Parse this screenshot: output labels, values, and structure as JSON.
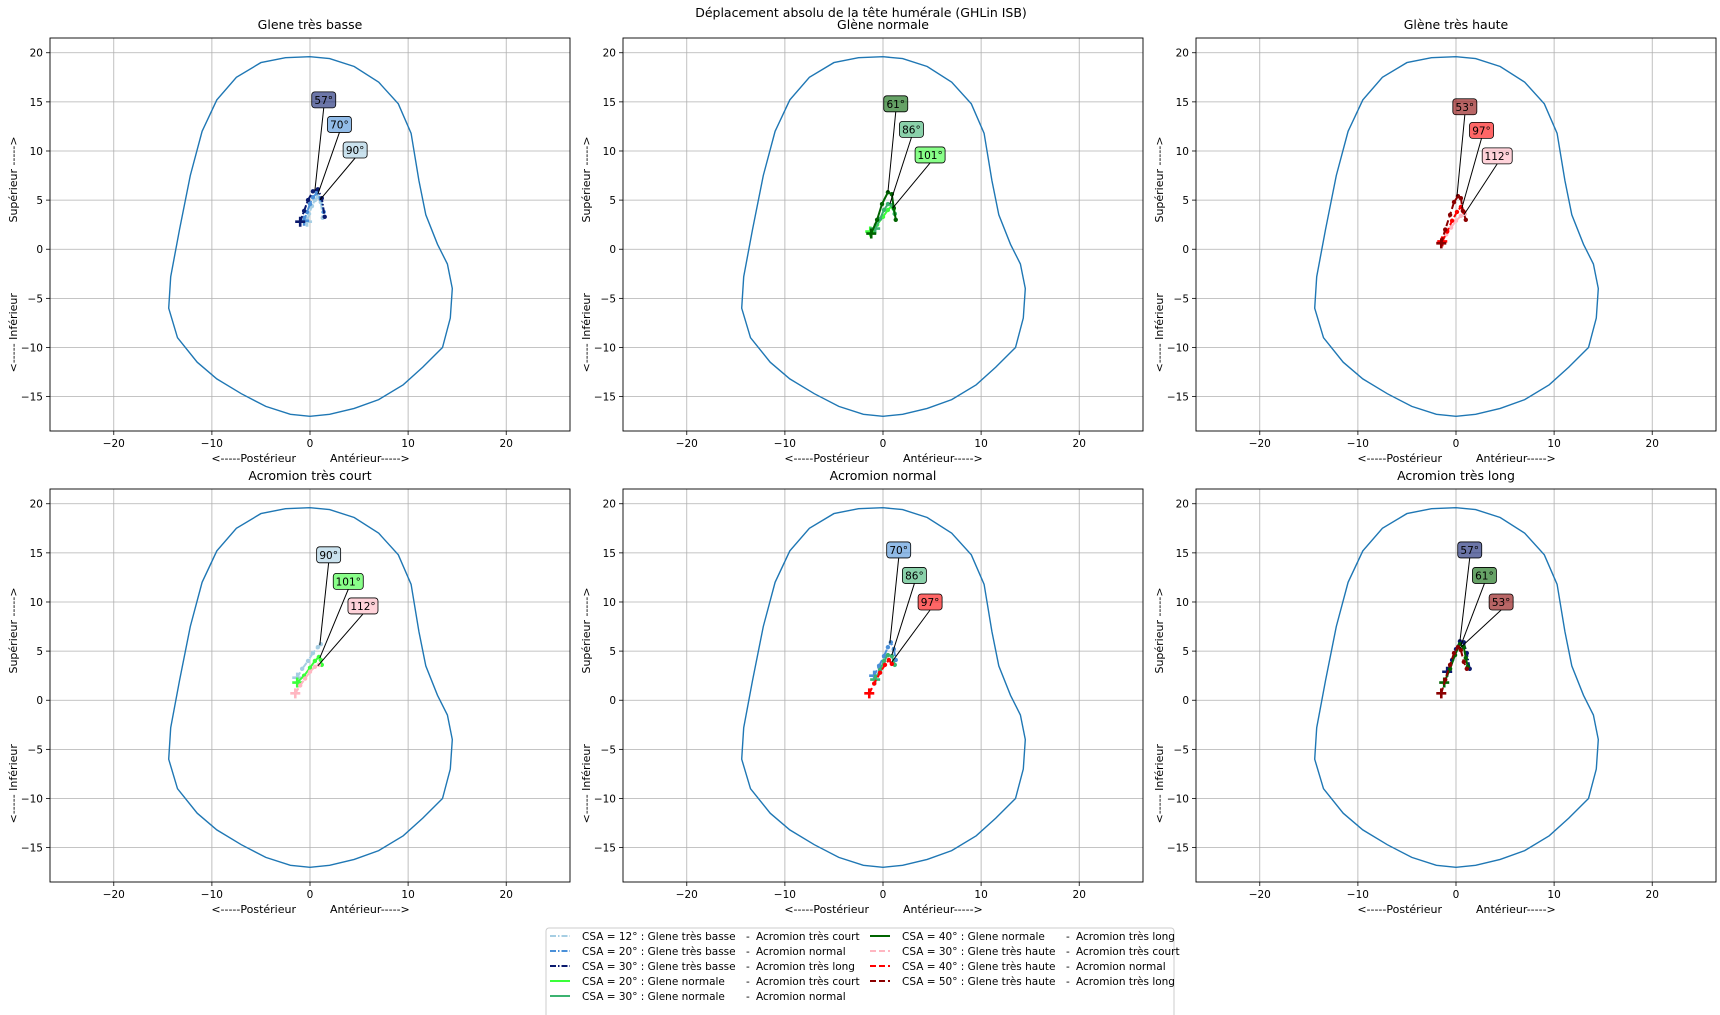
{
  "figure_title": "Déplacement absolu de la tête humérale (GHLin ISB)",
  "chart_data": {
    "type": "line",
    "title": "Déplacement absolu de la tête humérale (GHLin ISB)",
    "xlim": [
      -26.5,
      26.5
    ],
    "ylim": [
      -18.5,
      21.5
    ],
    "xticks": [
      -20,
      -10,
      0,
      10,
      20
    ],
    "yticks": [
      -15,
      -10,
      -5,
      0,
      5,
      10,
      15,
      20
    ],
    "xlabel_left": "<-----Postérieur",
    "xlabel_right": "Antérieur----->",
    "ylabel_bottom": "<----- Inférieur",
    "ylabel_top": "Supérieur ----->",
    "grid": true,
    "legend_placement": "bottom-center",
    "outline_color": "#1f77b4",
    "glenoid_outline": [
      [
        0,
        19.6
      ],
      [
        -2.5,
        19.5
      ],
      [
        -5,
        19
      ],
      [
        -7.5,
        17.5
      ],
      [
        -9.5,
        15.2
      ],
      [
        -11,
        12
      ],
      [
        -12.2,
        7.5
      ],
      [
        -13.3,
        2
      ],
      [
        -14.2,
        -2.8
      ],
      [
        -14.4,
        -6
      ],
      [
        -13.5,
        -9
      ],
      [
        -11.5,
        -11.5
      ],
      [
        -9.5,
        -13.2
      ],
      [
        -7,
        -14.7
      ],
      [
        -4.5,
        -16
      ],
      [
        -2,
        -16.8
      ],
      [
        0,
        -17
      ],
      [
        2,
        -16.8
      ],
      [
        4.5,
        -16.2
      ],
      [
        7,
        -15.3
      ],
      [
        9.5,
        -13.8
      ],
      [
        11.5,
        -12
      ],
      [
        13.5,
        -10
      ],
      [
        14.3,
        -7
      ],
      [
        14.5,
        -4
      ],
      [
        14,
        -1.5
      ],
      [
        13,
        0.5
      ],
      [
        11.8,
        3.5
      ],
      [
        11.1,
        7
      ],
      [
        10.3,
        11.8
      ],
      [
        9,
        14.8
      ],
      [
        7,
        17
      ],
      [
        4.5,
        18.6
      ],
      [
        2,
        19.4
      ],
      [
        0,
        19.6
      ]
    ],
    "legend": [
      {
        "label": "CSA = 12° : Glene très basse",
        "sep": "-",
        "acromion": "Acromion très court",
        "color": "#a6cee3",
        "dash": "dashdot"
      },
      {
        "label": "CSA = 20° : Glene très basse",
        "sep": "-",
        "acromion": "Acromion normal",
        "color": "#4a90d9",
        "dash": "dashdot"
      },
      {
        "label": "CSA = 30° : Glene très basse",
        "sep": "-",
        "acromion": "Acromion très long",
        "color": "#0a1a6e",
        "dash": "dashdot"
      },
      {
        "label": "CSA = 20° : Glene normale",
        "sep": "-",
        "acromion": "Acromion très court",
        "color": "#3aff3a",
        "dash": "solid"
      },
      {
        "label": "CSA = 30° : Glene normale",
        "sep": "-",
        "acromion": "Acromion normal",
        "color": "#3cb371",
        "dash": "solid"
      },
      {
        "label": "CSA = 40° : Glene normale",
        "sep": "-",
        "acromion": "Acromion très long",
        "color": "#006400",
        "dash": "solid"
      },
      {
        "label": "CSA = 30° : Glene très haute",
        "sep": "-",
        "acromion": "Acromion très court",
        "color": "#ffb6c1",
        "dash": "dashed"
      },
      {
        "label": "CSA = 40° : Glene très haute",
        "sep": "-",
        "acromion": "Acromion normal",
        "color": "#ff0000",
        "dash": "dashed"
      },
      {
        "label": "CSA = 50° : Glene très haute",
        "sep": "-",
        "acromion": "Acromion très long",
        "color": "#8b0000",
        "dash": "dashed"
      }
    ],
    "panels": [
      {
        "title": "Glene très basse",
        "series": [
          {
            "ref": 0,
            "points": [
              [
                -0.3,
                2.8
              ],
              [
                -0.1,
                3.6
              ],
              [
                0.2,
                4.4
              ],
              [
                0.5,
                5.0
              ],
              [
                0.8,
                5.3
              ],
              [
                1.1,
                4.8
              ],
              [
                1.3,
                3.2
              ]
            ]
          },
          {
            "ref": 1,
            "points": [
              [
                -0.6,
                2.9
              ],
              [
                -0.3,
                3.8
              ],
              [
                0,
                4.6
              ],
              [
                0.3,
                5.3
              ],
              [
                0.7,
                5.7
              ],
              [
                1.1,
                5.1
              ],
              [
                1.4,
                3.8
              ]
            ]
          },
          {
            "ref": 2,
            "points": [
              [
                -1.0,
                2.8
              ],
              [
                -0.6,
                3.9
              ],
              [
                -0.2,
                5.0
              ],
              [
                0.3,
                5.9
              ],
              [
                0.8,
                6.1
              ],
              [
                1.2,
                5.2
              ],
              [
                1.5,
                3.3
              ]
            ]
          }
        ],
        "annotations": [
          {
            "text": "57°",
            "ref": 2,
            "anchor": [
              0.5,
              6.0
            ],
            "label_at": [
              1.4,
              15.2
            ]
          },
          {
            "text": "70°",
            "ref": 1,
            "anchor": [
              0.8,
              5.6
            ],
            "label_at": [
              3.0,
              12.7
            ]
          },
          {
            "text": "90°",
            "ref": 0,
            "anchor": [
              1.0,
              5.0
            ],
            "label_at": [
              4.6,
              10.1
            ]
          }
        ]
      },
      {
        "title": "Glène normale",
        "series": [
          {
            "ref": 3,
            "points": [
              [
                -1.3,
                1.8
              ],
              [
                -0.6,
                2.5
              ],
              [
                0,
                3.3
              ],
              [
                0.5,
                4.0
              ],
              [
                0.9,
                4.4
              ],
              [
                1.1,
                4.1
              ],
              [
                1.2,
                3.6
              ]
            ]
          },
          {
            "ref": 4,
            "points": [
              [
                -0.8,
                2.1
              ],
              [
                -0.3,
                3.1
              ],
              [
                0.1,
                4.0
              ],
              [
                0.5,
                4.6
              ],
              [
                0.9,
                4.5
              ],
              [
                1.2,
                3.6
              ]
            ]
          },
          {
            "ref": 5,
            "points": [
              [
                -1.2,
                1.6
              ],
              [
                -0.6,
                3.0
              ],
              [
                -0.1,
                4.6
              ],
              [
                0.5,
                5.8
              ],
              [
                0.9,
                5.6
              ],
              [
                1.1,
                4.2
              ],
              [
                1.3,
                3.0
              ]
            ]
          }
        ],
        "annotations": [
          {
            "text": "61°",
            "ref": 5,
            "anchor": [
              0.5,
              5.8
            ],
            "label_at": [
              1.3,
              14.8
            ]
          },
          {
            "text": "86°",
            "ref": 4,
            "anchor": [
              0.7,
              4.6
            ],
            "label_at": [
              2.9,
              12.2
            ]
          },
          {
            "text": "101°",
            "ref": 3,
            "anchor": [
              1.0,
              4.2
            ],
            "label_at": [
              4.8,
              9.6
            ]
          }
        ]
      },
      {
        "title": "Glène très haute",
        "series": [
          {
            "ref": 6,
            "points": [
              [
                -1.5,
                0.7
              ],
              [
                -1.0,
                1.5
              ],
              [
                -0.5,
                2.2
              ],
              [
                0,
                2.9
              ],
              [
                0.5,
                3.4
              ],
              [
                0.9,
                3.6
              ]
            ]
          },
          {
            "ref": 7,
            "points": [
              [
                -1.4,
                0.8
              ],
              [
                -0.9,
                1.8
              ],
              [
                -0.4,
                2.9
              ],
              [
                0.1,
                3.8
              ],
              [
                0.5,
                4.3
              ],
              [
                0.8,
                3.8
              ]
            ]
          },
          {
            "ref": 8,
            "points": [
              [
                -1.5,
                0.6
              ],
              [
                -1.1,
                2.0
              ],
              [
                -0.6,
                3.5
              ],
              [
                -0.2,
                4.8
              ],
              [
                0.2,
                5.4
              ],
              [
                0.5,
                5.2
              ],
              [
                0.7,
                3.9
              ],
              [
                1.0,
                3.0
              ]
            ]
          }
        ],
        "annotations": [
          {
            "text": "53°",
            "ref": 8,
            "anchor": [
              0.1,
              5.4
            ],
            "label_at": [
              0.9,
              14.5
            ]
          },
          {
            "text": "97°",
            "ref": 7,
            "anchor": [
              0.6,
              4.2
            ],
            "label_at": [
              2.6,
              12.1
            ]
          },
          {
            "text": "112°",
            "ref": 6,
            "anchor": [
              0.8,
              3.5
            ],
            "label_at": [
              4.2,
              9.5
            ]
          }
        ]
      },
      {
        "title": "Acromion très court",
        "series": [
          {
            "ref": 0,
            "points": [
              [
                -1.3,
                2.3
              ],
              [
                -0.8,
                3.2
              ],
              [
                -0.2,
                4.0
              ],
              [
                0.3,
                4.8
              ],
              [
                0.8,
                5.4
              ],
              [
                1.1,
                5.7
              ]
            ]
          },
          {
            "ref": 3,
            "points": [
              [
                -1.3,
                1.8
              ],
              [
                -0.6,
                2.5
              ],
              [
                0,
                3.3
              ],
              [
                0.5,
                4.0
              ],
              [
                0.9,
                4.4
              ],
              [
                1.1,
                4.1
              ],
              [
                1.2,
                3.6
              ]
            ]
          },
          {
            "ref": 6,
            "points": [
              [
                -1.5,
                0.7
              ],
              [
                -1.0,
                1.5
              ],
              [
                -0.5,
                2.2
              ],
              [
                0,
                2.9
              ],
              [
                0.5,
                3.4
              ],
              [
                0.9,
                3.6
              ]
            ]
          }
        ],
        "annotations": [
          {
            "text": "90°",
            "ref": 0,
            "anchor": [
              1.0,
              5.6
            ],
            "label_at": [
              1.9,
              14.8
            ]
          },
          {
            "text": "101°",
            "ref": 3,
            "anchor": [
              1.0,
              4.3
            ],
            "label_at": [
              3.9,
              12.1
            ]
          },
          {
            "text": "112°",
            "ref": 6,
            "anchor": [
              0.8,
              3.5
            ],
            "label_at": [
              5.4,
              9.6
            ]
          }
        ]
      },
      {
        "title": "Acromion normal",
        "series": [
          {
            "ref": 1,
            "points": [
              [
                -0.9,
                2.5
              ],
              [
                -0.4,
                3.5
              ],
              [
                0.1,
                4.5
              ],
              [
                0.5,
                5.4
              ],
              [
                0.8,
                5.9
              ],
              [
                1.1,
                5.2
              ],
              [
                1.3,
                4.1
              ]
            ]
          },
          {
            "ref": 4,
            "points": [
              [
                -0.8,
                2.1
              ],
              [
                -0.3,
                3.1
              ],
              [
                0.1,
                4.0
              ],
              [
                0.5,
                4.6
              ],
              [
                0.9,
                4.5
              ],
              [
                1.2,
                3.6
              ]
            ]
          },
          {
            "ref": 7,
            "points": [
              [
                -1.4,
                0.7
              ],
              [
                -0.9,
                1.7
              ],
              [
                -0.3,
                2.8
              ],
              [
                0.2,
                3.6
              ],
              [
                0.6,
                4.1
              ],
              [
                0.9,
                3.7
              ]
            ]
          }
        ],
        "annotations": [
          {
            "text": "70°",
            "ref": 1,
            "anchor": [
              0.7,
              5.8
            ],
            "label_at": [
              1.6,
              15.3
            ]
          },
          {
            "text": "86°",
            "ref": 4,
            "anchor": [
              0.9,
              4.6
            ],
            "label_at": [
              3.2,
              12.7
            ]
          },
          {
            "text": "97°",
            "ref": 7,
            "anchor": [
              0.9,
              3.9
            ],
            "label_at": [
              4.8,
              10.0
            ]
          }
        ]
      },
      {
        "title": "Acromion très long",
        "series": [
          {
            "ref": 2,
            "points": [
              [
                -0.9,
                2.9
              ],
              [
                -0.4,
                4.1
              ],
              [
                0,
                5.2
              ],
              [
                0.4,
                6.0
              ],
              [
                0.8,
                5.9
              ],
              [
                1.1,
                4.8
              ],
              [
                1.4,
                3.2
              ]
            ]
          },
          {
            "ref": 5,
            "points": [
              [
                -1.2,
                1.8
              ],
              [
                -0.6,
                3.2
              ],
              [
                -0.1,
                4.6
              ],
              [
                0.4,
                5.7
              ],
              [
                0.8,
                5.4
              ],
              [
                1.0,
                4.3
              ],
              [
                1.2,
                3.4
              ]
            ]
          },
          {
            "ref": 8,
            "points": [
              [
                -1.5,
                0.7
              ],
              [
                -1.1,
                2.1
              ],
              [
                -0.6,
                3.6
              ],
              [
                -0.2,
                4.8
              ],
              [
                0.2,
                5.4
              ],
              [
                0.5,
                5.1
              ],
              [
                0.8,
                3.9
              ],
              [
                1.1,
                3.2
              ]
            ]
          }
        ],
        "annotations": [
          {
            "text": "57°",
            "ref": 2,
            "anchor": [
              0.4,
              6.0
            ],
            "label_at": [
              1.4,
              15.3
            ]
          },
          {
            "text": "61°",
            "ref": 5,
            "anchor": [
              0.5,
              5.6
            ],
            "label_at": [
              2.9,
              12.7
            ]
          },
          {
            "text": "53°",
            "ref": 8,
            "anchor": [
              0.4,
              5.3
            ],
            "label_at": [
              4.6,
              10.0
            ]
          }
        ]
      }
    ]
  }
}
